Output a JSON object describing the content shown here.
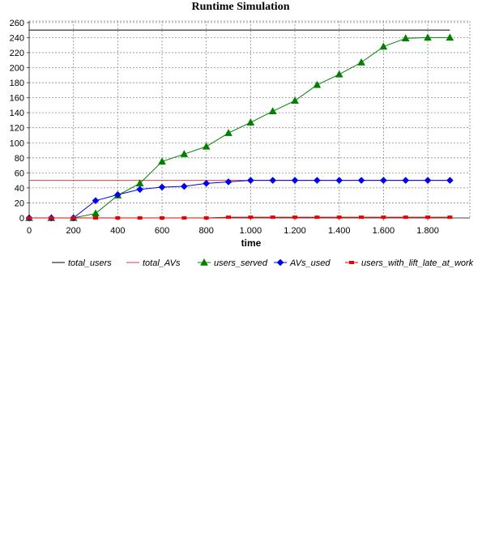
{
  "chart_data": {
    "type": "line",
    "title": "Runtime Simulation",
    "xlabel": "time",
    "ylabel": "",
    "xlim": [
      0,
      1990
    ],
    "ylim": [
      0,
      262
    ],
    "x_ticks": [
      0,
      200,
      400,
      600,
      800,
      1000,
      1200,
      1400,
      1600,
      1800
    ],
    "x_tick_labels": [
      "0",
      "200",
      "400",
      "600",
      "800",
      "1.000",
      "1.200",
      "1.400",
      "1.600",
      "1.800"
    ],
    "y_ticks": [
      0,
      20,
      40,
      60,
      80,
      100,
      120,
      140,
      160,
      180,
      200,
      220,
      240,
      260
    ],
    "y_tick_labels": [
      "0",
      "20",
      "40",
      "60",
      "80",
      "100",
      "120",
      "140",
      "160",
      "180",
      "200",
      "220",
      "240",
      "260"
    ],
    "grid": true,
    "legend_position": "bottom",
    "series": [
      {
        "name": "total_users",
        "color": "#000000",
        "marker": "none",
        "x": [
          0,
          1900
        ],
        "y": [
          250,
          250
        ]
      },
      {
        "name": "total_AVs",
        "color": "#cc4444",
        "marker": "none",
        "x": [
          0,
          1900
        ],
        "y": [
          50,
          50
        ]
      },
      {
        "name": "users_served",
        "color": "#008000",
        "marker": "triangle",
        "x": [
          0,
          100,
          200,
          300,
          400,
          500,
          600,
          700,
          800,
          900,
          1000,
          1100,
          1200,
          1300,
          1400,
          1500,
          1600,
          1700,
          1800,
          1900
        ],
        "y": [
          0,
          0,
          0,
          6,
          30,
          46,
          75,
          85,
          95,
          113,
          127,
          142,
          156,
          177,
          191,
          207,
          228,
          239,
          240,
          240
        ]
      },
      {
        "name": "AVs_used",
        "color": "#0000ee",
        "marker": "diamond",
        "x": [
          0,
          100,
          200,
          300,
          400,
          500,
          600,
          700,
          800,
          900,
          1000,
          1100,
          1200,
          1300,
          1400,
          1500,
          1600,
          1700,
          1800,
          1900
        ],
        "y": [
          0,
          0,
          0,
          23,
          31,
          38,
          41,
          42,
          46,
          48,
          50,
          50,
          50,
          50,
          50,
          50,
          50,
          50,
          50,
          50
        ]
      },
      {
        "name": "users_with_lift_late_at_work",
        "color": "#ee0000",
        "marker": "square",
        "x": [
          0,
          100,
          200,
          300,
          400,
          500,
          600,
          700,
          800,
          900,
          1000,
          1100,
          1200,
          1300,
          1400,
          1500,
          1600,
          1700,
          1800,
          1900
        ],
        "y": [
          0,
          0,
          0,
          0,
          0,
          0,
          0,
          0,
          0,
          1,
          1,
          1,
          1,
          1,
          1,
          1,
          1,
          1,
          1,
          1
        ]
      }
    ]
  }
}
